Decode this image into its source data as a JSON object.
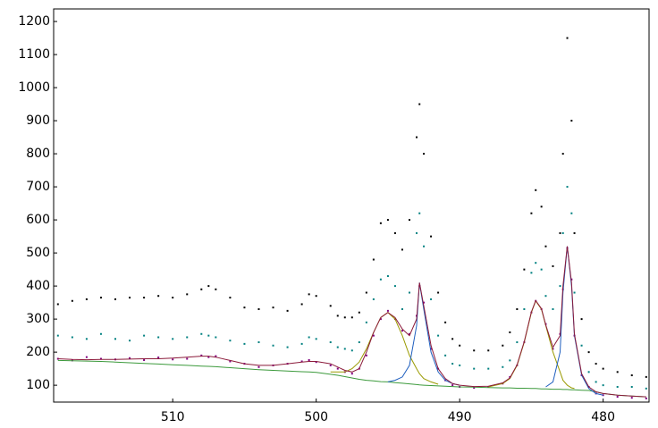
{
  "chart_data": {
    "type": "scatter",
    "x": [
      518,
      517,
      516,
      515,
      514,
      513,
      512,
      511,
      510,
      509,
      508,
      507.5,
      507,
      506,
      505,
      504,
      503,
      502,
      501,
      500.5,
      500,
      499,
      498.5,
      498,
      497.5,
      497,
      496.5,
      496,
      495.5,
      495,
      494.5,
      494,
      493.5,
      493,
      492.8,
      492.5,
      492,
      491.5,
      491,
      490.5,
      490,
      489,
      488,
      487,
      486.5,
      486,
      485.5,
      485,
      484.7,
      484.3,
      484,
      483.5,
      483,
      482.8,
      482.5,
      482.2,
      482,
      481.5,
      481,
      480.5,
      480,
      479,
      478,
      477
    ],
    "series": [
      {
        "color": "#000000",
        "mode": "markers",
        "values": [
          345,
          355,
          360,
          365,
          360,
          365,
          365,
          370,
          365,
          375,
          390,
          400,
          390,
          365,
          335,
          330,
          335,
          325,
          345,
          375,
          370,
          340,
          310,
          305,
          305,
          320,
          380,
          480,
          590,
          600,
          560,
          510,
          600,
          850,
          950,
          800,
          550,
          380,
          290,
          240,
          220,
          205,
          205,
          220,
          260,
          330,
          450,
          620,
          690,
          640,
          520,
          460,
          560,
          800,
          1150,
          900,
          560,
          300,
          200,
          165,
          150,
          140,
          130,
          125
        ]
      },
      {
        "color": "#008080",
        "mode": "markers",
        "values": [
          250,
          245,
          240,
          255,
          240,
          235,
          250,
          245,
          240,
          245,
          255,
          250,
          245,
          235,
          225,
          230,
          220,
          215,
          225,
          245,
          240,
          230,
          215,
          210,
          205,
          230,
          290,
          360,
          420,
          430,
          400,
          330,
          380,
          560,
          620,
          520,
          360,
          250,
          190,
          165,
          160,
          150,
          150,
          155,
          175,
          230,
          330,
          440,
          470,
          450,
          370,
          330,
          400,
          560,
          700,
          620,
          380,
          220,
          140,
          110,
          100,
          95,
          95,
          90
        ]
      },
      {
        "color": "#800080",
        "mode": "markers",
        "values": [
          180,
          175,
          185,
          180,
          178,
          182,
          176,
          184,
          178,
          180,
          190,
          185,
          188,
          172,
          165,
          155,
          160,
          165,
          172,
          176,
          170,
          160,
          150,
          140,
          135,
          150,
          190,
          250,
          300,
          325,
          300,
          265,
          255,
          310,
          400,
          350,
          210,
          150,
          115,
          100,
          95,
          92,
          95,
          105,
          125,
          160,
          230,
          320,
          355,
          330,
          285,
          210,
          255,
          390,
          515,
          420,
          250,
          130,
          95,
          75,
          70,
          65,
          62,
          60
        ]
      },
      {
        "color": "#3c9a3c",
        "mode": "lines",
        "values": [
          175,
          174,
          173,
          172,
          170,
          168,
          166,
          164,
          162,
          160,
          158,
          157,
          156,
          153,
          150,
          147,
          145,
          143,
          141,
          140,
          139,
          133,
          130,
          126,
          122,
          118,
          115,
          113,
          111,
          110,
          108,
          106,
          104,
          102,
          101,
          100,
          99,
          98,
          97,
          96,
          95,
          94,
          93,
          92,
          92,
          91,
          91,
          90,
          90,
          89,
          89,
          88,
          88,
          87,
          87,
          86,
          86,
          85,
          84,
          80,
          75,
          70,
          67,
          65
        ]
      },
      {
        "color": "#9a9a00",
        "mode": "lines",
        "values": [
          null,
          null,
          null,
          null,
          null,
          null,
          null,
          null,
          null,
          null,
          null,
          null,
          null,
          null,
          null,
          null,
          null,
          null,
          null,
          null,
          null,
          140,
          140,
          140,
          150,
          170,
          210,
          260,
          305,
          320,
          300,
          250,
          190,
          150,
          135,
          120,
          110,
          103,
          null,
          null,
          null,
          null,
          95,
          105,
          120,
          160,
          230,
          320,
          355,
          330,
          280,
          200,
          140,
          115,
          100,
          92,
          90,
          null,
          null,
          null,
          null,
          null,
          null,
          null
        ]
      },
      {
        "color": "#1f5fbf",
        "mode": "lines",
        "values": [
          null,
          null,
          null,
          null,
          null,
          null,
          null,
          null,
          null,
          null,
          null,
          null,
          null,
          null,
          null,
          null,
          null,
          null,
          null,
          null,
          null,
          null,
          null,
          null,
          null,
          null,
          null,
          null,
          null,
          110,
          115,
          125,
          160,
          280,
          410,
          330,
          200,
          140,
          115,
          105,
          100,
          null,
          null,
          null,
          null,
          null,
          null,
          null,
          null,
          null,
          95,
          110,
          200,
          380,
          520,
          400,
          250,
          130,
          90,
          75,
          70,
          null,
          null,
          null
        ]
      },
      {
        "color": "#8b1a3a",
        "mode": "lines",
        "values": [
          180,
          178,
          177,
          178,
          178,
          179,
          180,
          180,
          182,
          185,
          188,
          188,
          185,
          175,
          165,
          160,
          160,
          165,
          170,
          172,
          172,
          165,
          155,
          145,
          140,
          150,
          200,
          260,
          305,
          320,
          305,
          270,
          250,
          300,
          410,
          340,
          220,
          150,
          120,
          105,
          100,
          96,
          97,
          107,
          122,
          162,
          232,
          322,
          356,
          332,
          282,
          215,
          250,
          400,
          520,
          410,
          255,
          135,
          95,
          80,
          75,
          70,
          67,
          65
        ]
      }
    ],
    "xlim": [
      518.3,
      476.8
    ],
    "ylim": [
      49,
      1238
    ],
    "xticks": [
      510,
      500,
      490,
      480
    ],
    "yticks": [
      100,
      200,
      300,
      400,
      500,
      600,
      700,
      800,
      900,
      1000,
      1100,
      1200
    ]
  }
}
